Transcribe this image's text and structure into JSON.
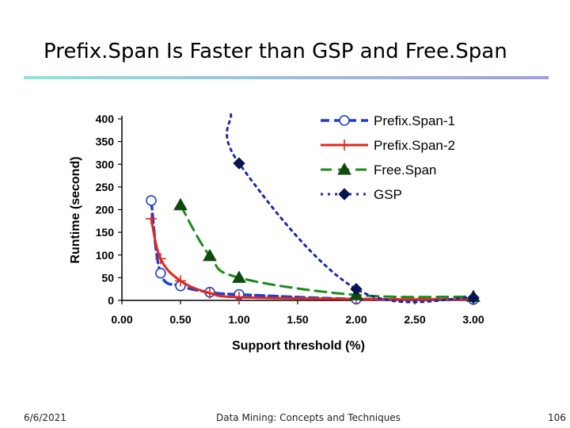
{
  "slide": {
    "title": "Prefix.Span Is Faster than GSP and Free.Span",
    "footer_date": "6/6/2021",
    "footer_center": "Data Mining: Concepts and Techniques",
    "page_number": "106"
  },
  "colors": {
    "prefixspan1": "#1f3fcf",
    "prefixspan2": "#e0281e",
    "freespan": "#1c8a1c",
    "gsp": "#1a2aa8",
    "marker_fill_dark": "#0a1450"
  },
  "chart_data": {
    "type": "line",
    "title": "",
    "xlabel": "Support threshold (%)",
    "ylabel": "Runtime (second)",
    "xlim": [
      0.0,
      3.0
    ],
    "ylim": [
      0,
      400
    ],
    "x_ticks": [
      "0.00",
      "0.50",
      "1.00",
      "1.50",
      "2.00",
      "2.50",
      "3.00"
    ],
    "y_ticks": [
      "0",
      "50",
      "100",
      "150",
      "200",
      "250",
      "300",
      "350",
      "400"
    ],
    "legend_position": "top-right",
    "series": [
      {
        "name": "Prefix.Span-1",
        "line": "dashed",
        "marker": "circle",
        "x": [
          0.25,
          0.33,
          0.5,
          0.75,
          1.0,
          2.0,
          3.0
        ],
        "y": [
          220,
          60,
          32,
          18,
          13,
          3,
          2
        ]
      },
      {
        "name": "Prefix.Span-2",
        "line": "solid",
        "marker": "plus",
        "x": [
          0.25,
          0.33,
          0.5,
          0.75,
          1.0,
          2.0,
          3.0
        ],
        "y": [
          180,
          92,
          43,
          16,
          7,
          3,
          2
        ]
      },
      {
        "name": "Free.Span",
        "line": "dashed",
        "marker": "triangle",
        "x": [
          0.5,
          0.75,
          1.0,
          2.0,
          3.0
        ],
        "y": [
          210,
          98,
          50,
          12,
          8
        ]
      },
      {
        "name": "GSP",
        "line": "dotted",
        "marker": "diamond",
        "x": [
          0.93,
          1.0,
          2.0,
          3.0
        ],
        "y": [
          410,
          302,
          25,
          6
        ],
        "note": "first point is the line entering from above the plot top"
      }
    ]
  }
}
